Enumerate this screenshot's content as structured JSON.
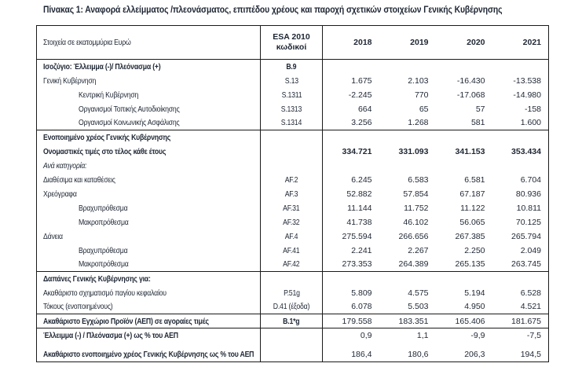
{
  "title": "Πίνακας 1: Αναφορά ελλείμματος /πλεονάσματος, επιπέδου χρέους και παροχή σχετικών στοιχείων Γενικής Κυβέρνησης",
  "colors": {
    "text": "#1e2633",
    "border": "#1a1a1a",
    "background": "#ffffff"
  },
  "table": {
    "header": {
      "col_label": "Στοιχεία σε εκατομμύρια Ευρώ",
      "col_code_line1": "ESA 2010",
      "col_code_line2": "κωδικοί",
      "years": [
        "2018",
        "2019",
        "2020",
        "2021"
      ]
    },
    "rows": [
      {
        "label": "Ισοζύγιο: Έλλειμμα (-)/ Πλεόνασμα (+)",
        "code": "B.9",
        "values": [
          "",
          "",
          "",
          ""
        ],
        "style": "bold",
        "indent": 0
      },
      {
        "label": "Γενική Κυβέρνηση",
        "code": "S.13",
        "values": [
          "1.675",
          "2.103",
          "-16.430",
          "-13.538"
        ],
        "style": "normal",
        "indent": 0
      },
      {
        "label": "Κεντρική Κυβέρνηση",
        "code": "S.1311",
        "values": [
          "-2.245",
          "770",
          "-17.068",
          "-14.980"
        ],
        "style": "normal",
        "indent": 1
      },
      {
        "label": "Οργανισμοί Τοπικής Αυτοδιοίκησης",
        "code": "S.1313",
        "values": [
          "664",
          "65",
          "57",
          "-158"
        ],
        "style": "normal",
        "indent": 1
      },
      {
        "label": "Οργανισμοί Κοινωνικής Ασφάλισης",
        "code": "S.1314",
        "values": [
          "3.256",
          "1.268",
          "581",
          "1.600"
        ],
        "style": "normal",
        "indent": 1,
        "section_end": true
      },
      {
        "label": "Ενοποιημένο χρέος Γενικής Κυβέρνησης",
        "code": "",
        "values": [
          "",
          "",
          "",
          ""
        ],
        "style": "bold",
        "indent": 0
      },
      {
        "label": "Ονομαστικές τιμές στο τέλος κάθε έτους",
        "code": "",
        "values": [
          "334.721",
          "331.093",
          "341.153",
          "353.434"
        ],
        "style": "bold",
        "bold_values": true,
        "indent": 0
      },
      {
        "label": "Ανά κατηγορία:",
        "code": "",
        "values": [
          "",
          "",
          "",
          ""
        ],
        "style": "italic",
        "indent": 0
      },
      {
        "label": "Διαθέσιμα και καταθέσεις",
        "code": "AF.2",
        "values": [
          "6.245",
          "6.583",
          "6.581",
          "6.704"
        ],
        "style": "normal",
        "indent": 0
      },
      {
        "label": "Χρεόγραφα",
        "code": "AF.3",
        "values": [
          "52.882",
          "57.854",
          "67.187",
          "80.936"
        ],
        "style": "normal",
        "indent": 0
      },
      {
        "label": "Βραχυπρόθεσμα",
        "code": "AF.31",
        "values": [
          "11.144",
          "11.752",
          "11.122",
          "10.811"
        ],
        "style": "normal",
        "indent": 1
      },
      {
        "label": "Μακροπρόθεσμα",
        "code": "AF.32",
        "values": [
          "41.738",
          "46.102",
          "56.065",
          "70.125"
        ],
        "style": "normal",
        "indent": 1
      },
      {
        "label": "Δάνεια",
        "code": "AF.4",
        "values": [
          "275.594",
          "266.656",
          "267.385",
          "265.794"
        ],
        "style": "normal",
        "indent": 0
      },
      {
        "label": "Βραχυπρόθεσμα",
        "code": "AF.41",
        "values": [
          "2.241",
          "2.267",
          "2.250",
          "2.049"
        ],
        "style": "normal",
        "indent": 1
      },
      {
        "label": "Μακροπρόθεσμα",
        "code": "AF.42",
        "values": [
          "273.353",
          "264.389",
          "265.135",
          "263.745"
        ],
        "style": "normal",
        "indent": 1,
        "section_end": true
      },
      {
        "label": "Δαπάνες Γενικής Κυβέρνησης για:",
        "code": "",
        "values": [
          "",
          "",
          "",
          ""
        ],
        "style": "bold",
        "indent": 0
      },
      {
        "label": "Ακαθάριστο σχηματισμό παγίου κεφαλαίου",
        "code": "P.51g",
        "values": [
          "5.809",
          "4.575",
          "5.194",
          "6.528"
        ],
        "style": "normal",
        "indent": 0
      },
      {
        "label": "Τόκους (ενοποιημένους)",
        "code": "D.41 (έξοδα)",
        "values": [
          "6.078",
          "5.503",
          "4.950",
          "4.521"
        ],
        "style": "normal",
        "indent": 0,
        "section_end": true
      },
      {
        "label": "Ακαθάριστο Εγχώριο Προϊόν (ΑΕΠ) σε αγοραίες τιμές",
        "code": "B.1*g",
        "values": [
          "179.558",
          "183.351",
          "165.406",
          "181.675"
        ],
        "style": "bold",
        "indent": 0,
        "section_end": true
      },
      {
        "label": "Έλλειμμα (-) / Πλεόνασμα (+) ως % του ΑΕΠ",
        "code": "",
        "values": [
          "0,9",
          "1,1",
          "-9,9",
          "-7,5"
        ],
        "style": "bold",
        "indent": 0,
        "spacer_after": true
      },
      {
        "label": "Ακαθάριστο ενοποιημένο χρέος Γενικής Κυβέρνησης ως % του ΑΕΠ",
        "code": "",
        "values": [
          "186,4",
          "180,6",
          "206,3",
          "194,5"
        ],
        "style": "bold",
        "indent": 0
      }
    ]
  }
}
